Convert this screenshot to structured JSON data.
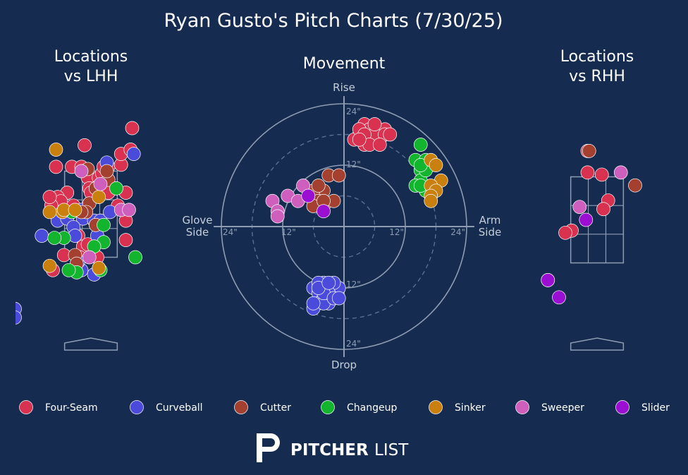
{
  "colors": {
    "background": "#152b4f",
    "frame": "#8d9cb3",
    "text": "#ffffff",
    "muted": "#c5cedb",
    "Four-Seam": "#d93250",
    "Curveball": "#4b4bdb",
    "Cutter": "#a3402f",
    "Changeup": "#12b52d",
    "Sinker": "#c9800e",
    "Sweeper": "#cf5fbc",
    "Slider": "#9a0fd1"
  },
  "title": "Ryan Gusto's Pitch Charts (7/30/25)",
  "chart_data": [
    {
      "type": "scatter",
      "title": "Locations\nvs LHH",
      "xlim": [
        -2.5,
        2.5
      ],
      "ylim": [
        -0.5,
        4.6
      ],
      "strike_zone": {
        "x": [
          -0.83,
          0.83
        ],
        "z": [
          1.5,
          3.5
        ]
      },
      "series": [
        {
          "name": "Four-Seam",
          "points": [
            [
              -0.2,
              4.1
            ],
            [
              -1.1,
              3.6
            ],
            [
              -0.6,
              3.6
            ],
            [
              -0.3,
              3.6
            ],
            [
              0.55,
              3.6
            ],
            [
              0.95,
              3.65
            ],
            [
              0.95,
              3.9
            ],
            [
              1.3,
              4.5
            ],
            [
              1.25,
              4.0
            ],
            [
              -0.1,
              3.35
            ],
            [
              0.25,
              3.35
            ],
            [
              -0.05,
              3.1
            ],
            [
              0.25,
              3.1
            ],
            [
              -0.75,
              3.0
            ],
            [
              -1.05,
              2.9
            ],
            [
              -0.95,
              2.8
            ],
            [
              -1.25,
              2.7
            ],
            [
              -1.3,
              2.9
            ],
            [
              -0.55,
              2.7
            ],
            [
              0.0,
              3.0
            ],
            [
              0.55,
              3.0
            ],
            [
              0.35,
              3.45
            ],
            [
              1.1,
              3.0
            ],
            [
              0.85,
              2.7
            ],
            [
              1.1,
              2.35
            ],
            [
              -0.4,
              2.0
            ],
            [
              1.1,
              1.9
            ],
            [
              -0.25,
              1.75
            ],
            [
              -0.1,
              1.8
            ],
            [
              -0.35,
              1.5
            ],
            [
              -0.85,
              1.55
            ],
            [
              0.2,
              1.5
            ],
            [
              -1.2,
              1.2
            ],
            [
              0.4,
              3.6
            ]
          ]
        },
        {
          "name": "Curveball",
          "points": [
            [
              -1.05,
              2.35
            ],
            [
              -0.75,
              2.4
            ],
            [
              -0.25,
              2.4
            ],
            [
              0.1,
              2.35
            ],
            [
              0.3,
              2.35
            ],
            [
              0.6,
              2.55
            ],
            [
              0.5,
              3.7
            ],
            [
              -0.55,
              2.2
            ],
            [
              -0.5,
              2.0
            ],
            [
              -1.55,
              2.0
            ],
            [
              -0.3,
              1.2
            ],
            [
              -0.4,
              1.4
            ],
            [
              0.1,
              1.1
            ],
            [
              0.2,
              2.0
            ],
            [
              1.35,
              3.9
            ],
            [
              -2.4,
              0.3
            ],
            [
              -2.4,
              0.1
            ],
            [
              -0.3,
              2.6
            ]
          ]
        },
        {
          "name": "Cutter",
          "points": [
            [
              -0.1,
              3.55
            ],
            [
              -0.05,
              2.75
            ],
            [
              -0.15,
              2.55
            ],
            [
              0.55,
              3.3
            ],
            [
              -0.3,
              2.55
            ],
            [
              0.15,
              2.25
            ],
            [
              -0.5,
              1.55
            ],
            [
              -0.45,
              1.35
            ],
            [
              0.5,
              3.5
            ],
            [
              0.15,
              3.1
            ]
          ]
        },
        {
          "name": "Changeup",
          "points": [
            [
              0.4,
              2.25
            ],
            [
              0.4,
              1.85
            ],
            [
              0.1,
              1.75
            ],
            [
              -0.85,
              1.95
            ],
            [
              -1.15,
              1.95
            ],
            [
              0.8,
              3.1
            ],
            [
              1.4,
              1.5
            ],
            [
              0.3,
              1.2
            ],
            [
              -0.45,
              1.15
            ],
            [
              -0.7,
              1.2
            ],
            [
              -0.6,
              2.55
            ]
          ]
        },
        {
          "name": "Sinker",
          "points": [
            [
              -1.1,
              4.0
            ],
            [
              -0.9,
              2.55
            ],
            [
              -1.3,
              2.55
            ],
            [
              -0.85,
              2.6
            ],
            [
              0.25,
              2.9
            ],
            [
              0.25,
              1.25
            ],
            [
              -1.3,
              1.3
            ],
            [
              -0.5,
              2.6
            ]
          ]
        },
        {
          "name": "Sweeper",
          "points": [
            [
              0.3,
              3.2
            ],
            [
              0.95,
              2.6
            ],
            [
              1.2,
              2.6
            ],
            [
              -0.3,
              3.5
            ],
            [
              -0.05,
              1.5
            ]
          ]
        },
        {
          "name": "Slider",
          "points": []
        }
      ]
    },
    {
      "type": "scatter",
      "title": "Movement",
      "axis_labels": {
        "top": "Rise",
        "bottom": "Drop",
        "left": "Glove\nSide",
        "right": "Arm\nSide"
      },
      "xlim": [
        -24,
        24
      ],
      "ylim": [
        -24,
        24
      ],
      "ring_labels": {
        "12": "12\"",
        "24": "24\""
      },
      "series": [
        {
          "name": "Four-Seam",
          "points": [
            [
              4,
              20
            ],
            [
              6,
              19
            ],
            [
              3,
              18
            ],
            [
              7,
              18
            ],
            [
              5,
              17
            ],
            [
              8,
              19
            ],
            [
              4,
              16
            ],
            [
              6,
              17
            ],
            [
              2,
              17
            ],
            [
              7,
              17
            ],
            [
              5,
              19
            ],
            [
              3,
              19
            ],
            [
              6,
              18
            ],
            [
              4,
              18
            ],
            [
              8,
              18
            ],
            [
              5,
              16
            ],
            [
              9,
              18
            ],
            [
              3,
              17
            ],
            [
              6,
              20
            ],
            [
              7,
              16
            ]
          ]
        },
        {
          "name": "Curveball",
          "points": [
            [
              -6,
              -12
            ],
            [
              -4,
              -11
            ],
            [
              -3,
              -12
            ],
            [
              -2,
              -13
            ],
            [
              -5,
              -13
            ],
            [
              -4,
              -14
            ],
            [
              -5,
              -15
            ],
            [
              -3,
              -15
            ],
            [
              -6,
              -16
            ],
            [
              -4,
              -15
            ],
            [
              -1,
              -12
            ],
            [
              -2,
              -11
            ],
            [
              -5,
              -11
            ],
            [
              -3,
              -13
            ],
            [
              -6,
              -15
            ],
            [
              -4,
              -13
            ],
            [
              -2,
              -14
            ],
            [
              -5,
              -12
            ],
            [
              -3,
              -11
            ],
            [
              -1,
              -14
            ]
          ]
        },
        {
          "name": "Cutter",
          "points": [
            [
              -3,
              10
            ],
            [
              -1,
              10
            ],
            [
              -4,
              7
            ],
            [
              -6,
              7
            ],
            [
              -5,
              5
            ],
            [
              -4,
              4
            ],
            [
              -6,
              4
            ],
            [
              -2,
              5
            ],
            [
              -4,
              5
            ],
            [
              -5,
              8
            ]
          ]
        },
        {
          "name": "Changeup",
          "points": [
            [
              15,
              16
            ],
            [
              14,
              13
            ],
            [
              15,
              11
            ],
            [
              16,
              13
            ],
            [
              17,
              12
            ],
            [
              15,
              9
            ],
            [
              14,
              8
            ],
            [
              16,
              7
            ],
            [
              17,
              6
            ],
            [
              15,
              8
            ],
            [
              16,
              11
            ],
            [
              15,
              12
            ]
          ]
        },
        {
          "name": "Sinker",
          "points": [
            [
              17,
              13
            ],
            [
              18,
              12
            ],
            [
              19,
              9
            ],
            [
              17,
              8
            ],
            [
              18,
              7
            ],
            [
              17,
              6
            ],
            [
              17,
              5
            ]
          ]
        },
        {
          "name": "Sweeper",
          "points": [
            [
              -14,
              5
            ],
            [
              -11,
              6
            ],
            [
              -13,
              3
            ],
            [
              -13,
              2
            ],
            [
              -9,
              5
            ],
            [
              -8,
              8
            ]
          ]
        },
        {
          "name": "Slider",
          "points": [
            [
              -7,
              6
            ],
            [
              -4,
              3
            ]
          ]
        }
      ]
    },
    {
      "type": "scatter",
      "title": "Locations\nvs RHH",
      "xlim": [
        -2.5,
        2.5
      ],
      "ylim": [
        -0.5,
        4.6
      ],
      "strike_zone": {
        "x": [
          -0.83,
          0.83
        ],
        "z": [
          1.5,
          3.5
        ]
      },
      "series": [
        {
          "name": "Four-Seam",
          "points": [
            [
              -0.3,
              4.1
            ],
            [
              -0.3,
              3.6
            ],
            [
              0.15,
              3.55
            ],
            [
              0.35,
              2.95
            ],
            [
              0.2,
              2.75
            ],
            [
              -0.8,
              2.25
            ],
            [
              -1.0,
              2.2
            ]
          ]
        },
        {
          "name": "Curveball",
          "points": []
        },
        {
          "name": "Cutter",
          "points": [
            [
              -0.25,
              4.1
            ],
            [
              1.2,
              3.3
            ]
          ]
        },
        {
          "name": "Changeup",
          "points": []
        },
        {
          "name": "Sinker",
          "points": []
        },
        {
          "name": "Sweeper",
          "points": [
            [
              0.75,
              3.6
            ],
            [
              -0.55,
              2.8
            ]
          ]
        },
        {
          "name": "Slider",
          "points": [
            [
              -0.35,
              2.5
            ],
            [
              -1.55,
              1.1
            ],
            [
              -1.2,
              0.7
            ],
            [
              -1.55,
              1.1
            ]
          ]
        }
      ]
    }
  ],
  "legend": [
    "Four-Seam",
    "Curveball",
    "Cutter",
    "Changeup",
    "Sinker",
    "Sweeper",
    "Slider"
  ],
  "logo": {
    "bold": "PITCHER",
    "light": "LIST"
  }
}
